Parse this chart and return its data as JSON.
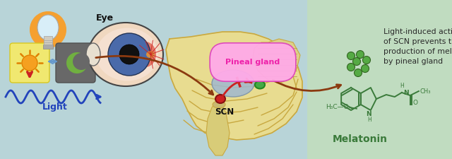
{
  "bg_color": "#b8d4d8",
  "right_panel_color": "#c0dcc0",
  "title_text": "Light-induced activation\nof SCN prevents the\nproduction of melatonin\nby pineal gland",
  "title_color": "#2a2a2a",
  "title_fontsize": 7.8,
  "melatonin_label": "Melatonin",
  "melatonin_color": "#3a7a3a",
  "scn_label": "SCN",
  "eye_label": "Eye",
  "pineal_label": "Pineal gland",
  "light_label": "Light",
  "label_color": "#222222",
  "pineal_label_color": "#ee22aa",
  "wave_color": "#2244bb",
  "brown_arrow_color": "#8b3a10",
  "brain_color": "#e8dc90",
  "brain_outline": "#c8a840",
  "figsize": [
    6.4,
    2.25
  ],
  "dpi": 100
}
